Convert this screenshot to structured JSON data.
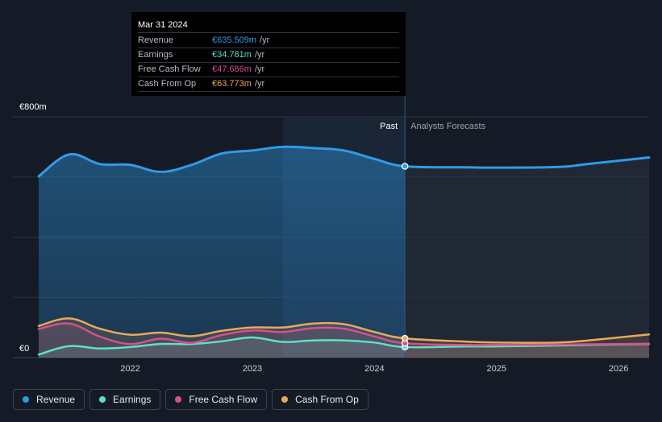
{
  "chart_data": {
    "type": "area",
    "currency_unit": "€m",
    "y_axis": {
      "min": 0,
      "max": 800,
      "labels": [
        "€800m",
        "€0"
      ],
      "gridlines": [
        0,
        200,
        400,
        600,
        800
      ]
    },
    "x_axis": {
      "min": 2021.25,
      "max": 2026.25,
      "ticks": [
        2022,
        2023,
        2024,
        2025,
        2026
      ],
      "tick_labels": [
        "2022",
        "2023",
        "2024",
        "2025",
        "2026"
      ]
    },
    "past_label": "Past",
    "forecast_label": "Analysts Forecasts",
    "divider_x": 2024.25,
    "highlight_start_x": 2023.25,
    "series": [
      {
        "name": "Revenue",
        "color": "#2f9be8",
        "points": [
          [
            2021.25,
            602
          ],
          [
            2021.5,
            675
          ],
          [
            2021.75,
            643
          ],
          [
            2022.0,
            640
          ],
          [
            2022.25,
            617
          ],
          [
            2022.5,
            640
          ],
          [
            2022.75,
            678
          ],
          [
            2023.0,
            688
          ],
          [
            2023.25,
            700
          ],
          [
            2023.5,
            696
          ],
          [
            2023.75,
            688
          ],
          [
            2024.0,
            660
          ],
          [
            2024.25,
            635.5
          ],
          [
            2024.75,
            632
          ],
          [
            2025.0,
            631
          ],
          [
            2025.5,
            633
          ],
          [
            2025.75,
            643
          ],
          [
            2026.25,
            665
          ]
        ]
      },
      {
        "name": "Earnings",
        "color": "#5ee0cc",
        "points": [
          [
            2021.25,
            10
          ],
          [
            2021.5,
            38
          ],
          [
            2021.75,
            30
          ],
          [
            2022.0,
            35
          ],
          [
            2022.25,
            45
          ],
          [
            2022.5,
            45
          ],
          [
            2022.75,
            54
          ],
          [
            2023.0,
            67
          ],
          [
            2023.25,
            52
          ],
          [
            2023.5,
            57
          ],
          [
            2023.75,
            57
          ],
          [
            2024.0,
            50
          ],
          [
            2024.25,
            34.8
          ],
          [
            2024.75,
            37
          ],
          [
            2025.0,
            37
          ],
          [
            2025.5,
            40
          ],
          [
            2025.75,
            42
          ],
          [
            2026.25,
            45
          ]
        ]
      },
      {
        "name": "Free Cash Flow",
        "color": "#d94f8c",
        "points": [
          [
            2021.25,
            95
          ],
          [
            2021.5,
            113
          ],
          [
            2021.75,
            70
          ],
          [
            2022.0,
            45
          ],
          [
            2022.25,
            63
          ],
          [
            2022.5,
            49
          ],
          [
            2022.75,
            75
          ],
          [
            2023.0,
            90
          ],
          [
            2023.25,
            85
          ],
          [
            2023.5,
            98
          ],
          [
            2023.75,
            96
          ],
          [
            2024.0,
            70
          ],
          [
            2024.25,
            47.7
          ],
          [
            2024.75,
            42
          ],
          [
            2025.0,
            42
          ],
          [
            2025.5,
            43
          ],
          [
            2025.75,
            44
          ],
          [
            2026.25,
            46
          ]
        ]
      },
      {
        "name": "Cash From Op",
        "color": "#e8a95b",
        "points": [
          [
            2021.25,
            105
          ],
          [
            2021.5,
            130
          ],
          [
            2021.75,
            96
          ],
          [
            2022.0,
            76
          ],
          [
            2022.25,
            83
          ],
          [
            2022.5,
            71
          ],
          [
            2022.75,
            89
          ],
          [
            2023.0,
            100
          ],
          [
            2023.25,
            100
          ],
          [
            2023.5,
            113
          ],
          [
            2023.75,
            111
          ],
          [
            2024.0,
            85
          ],
          [
            2024.25,
            63.8
          ],
          [
            2024.75,
            53
          ],
          [
            2025.0,
            50
          ],
          [
            2025.5,
            50
          ],
          [
            2025.75,
            57
          ],
          [
            2026.25,
            77
          ]
        ]
      }
    ]
  },
  "tooltip": {
    "date": "Mar 31 2024",
    "rows": [
      {
        "label": "Revenue",
        "value": "€635.509m",
        "unit": "/yr",
        "color": "#2f9be8"
      },
      {
        "label": "Earnings",
        "value": "€34.781m",
        "unit": "/yr",
        "color": "#5ee0cc"
      },
      {
        "label": "Free Cash Flow",
        "value": "€47.686m",
        "unit": "/yr",
        "color": "#d94f8c"
      },
      {
        "label": "Cash From Op",
        "value": "€63.773m",
        "unit": "/yr",
        "color": "#e8a95b"
      }
    ]
  },
  "legend": [
    {
      "label": "Revenue",
      "color": "#2f9be8"
    },
    {
      "label": "Earnings",
      "color": "#5ee0cc"
    },
    {
      "label": "Free Cash Flow",
      "color": "#d94f8c"
    },
    {
      "label": "Cash From Op",
      "color": "#e8a95b"
    }
  ]
}
